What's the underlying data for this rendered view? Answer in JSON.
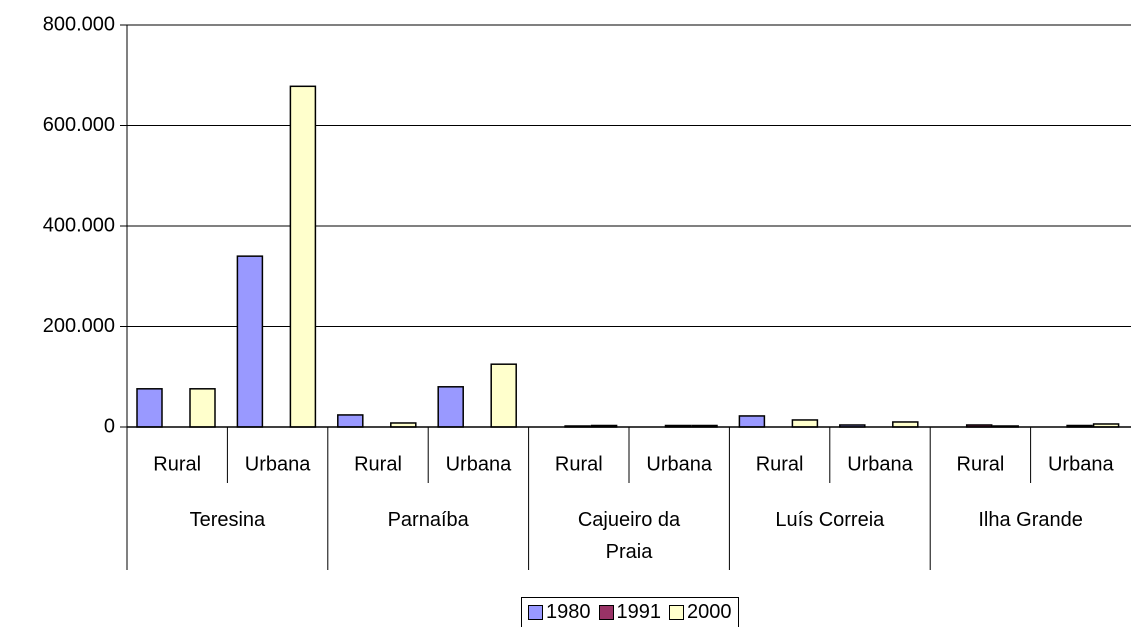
{
  "chart_data": {
    "type": "bar",
    "categories": [
      "Rural",
      "Urbana",
      "Rural",
      "Urbana",
      "Rural",
      "Urbana",
      "Rural",
      "Urbana",
      "Rural",
      "Urbana"
    ],
    "category_groups": [
      "Teresina",
      "Parnaíba",
      "Cajueiro da Praia",
      "Luís Correia",
      "Ilha Grande"
    ],
    "series": [
      {
        "name": "1980",
        "color": "#9999ff",
        "values": [
          76000,
          340000,
          24000,
          80000,
          null,
          null,
          22000,
          4000,
          null,
          null
        ]
      },
      {
        "name": "1991",
        "color": "#993366",
        "values": [
          null,
          null,
          null,
          null,
          2000,
          3000,
          null,
          null,
          4000,
          3000
        ]
      },
      {
        "name": "2000",
        "color": "#ffffcc",
        "values": [
          76000,
          678000,
          8000,
          125000,
          3000,
          3000,
          14000,
          10000,
          2000,
          6000
        ]
      }
    ],
    "ylim": [
      0,
      800000
    ],
    "yticks": [
      0,
      {
        "value": 200000,
        "label": "200.000"
      },
      {
        "value": 400000,
        "label": "400.000"
      },
      {
        "value": 600000,
        "label": "600.000"
      },
      {
        "value": 800000,
        "label": "800.000"
      }
    ],
    "grid": true,
    "legend": "bottom"
  }
}
